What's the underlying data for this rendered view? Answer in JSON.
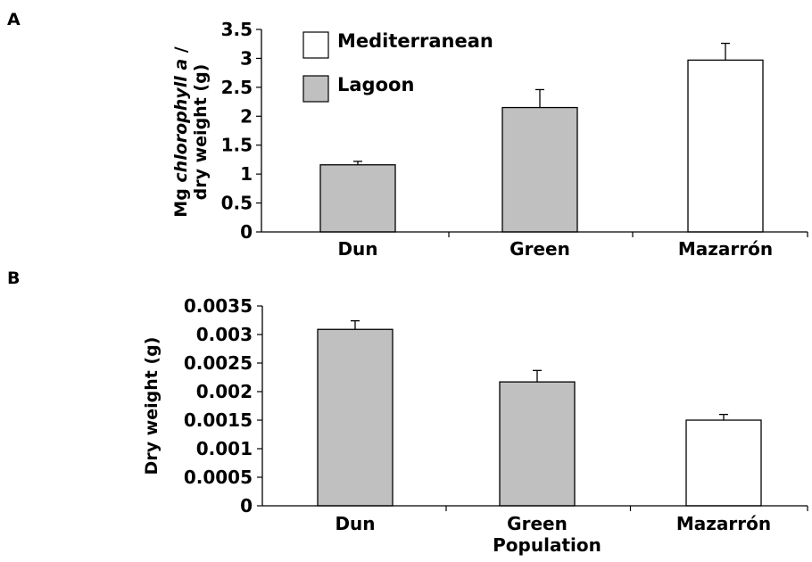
{
  "legend": {
    "mediterranean": "Mediterranean",
    "lagoon": "Lagoon"
  },
  "colors": {
    "mediterranean": "#ffffff",
    "lagoon": "#c0c0c0",
    "stroke": "#000000"
  },
  "chart_data": [
    {
      "panel": "A",
      "type": "bar",
      "ylabel_line1_prefix": "Mg ",
      "ylabel_line1_italic": "chlorophyll a",
      "ylabel_line1_suffix": " /",
      "ylabel_line2": "dry weight (g)",
      "xlabel": "",
      "categories": [
        "Dun",
        "Green",
        "Mazarrón"
      ],
      "values": [
        1.16,
        2.15,
        2.97
      ],
      "errors": [
        0.06,
        0.31,
        0.29
      ],
      "groups": [
        "Lagoon",
        "Lagoon",
        "Mediterranean"
      ],
      "ylim": [
        0,
        3.5
      ],
      "yticks": [
        "0",
        "0.5",
        "1",
        "1.5",
        "2",
        "2.5",
        "3",
        "3.5"
      ]
    },
    {
      "panel": "B",
      "type": "bar",
      "ylabel": "Dry weight (g)",
      "xlabel": "Population",
      "categories": [
        "Dun",
        "Green",
        "Mazarrón"
      ],
      "values": [
        0.00309,
        0.00217,
        0.0015
      ],
      "errors": [
        0.00015,
        0.0002,
        0.0001
      ],
      "groups": [
        "Lagoon",
        "Lagoon",
        "Mediterranean"
      ],
      "ylim": [
        0,
        0.0035
      ],
      "yticks": [
        "0",
        "0.0005",
        "0.001",
        "0.0015",
        "0.002",
        "0.0025",
        "0.003",
        "0.0035"
      ]
    }
  ]
}
